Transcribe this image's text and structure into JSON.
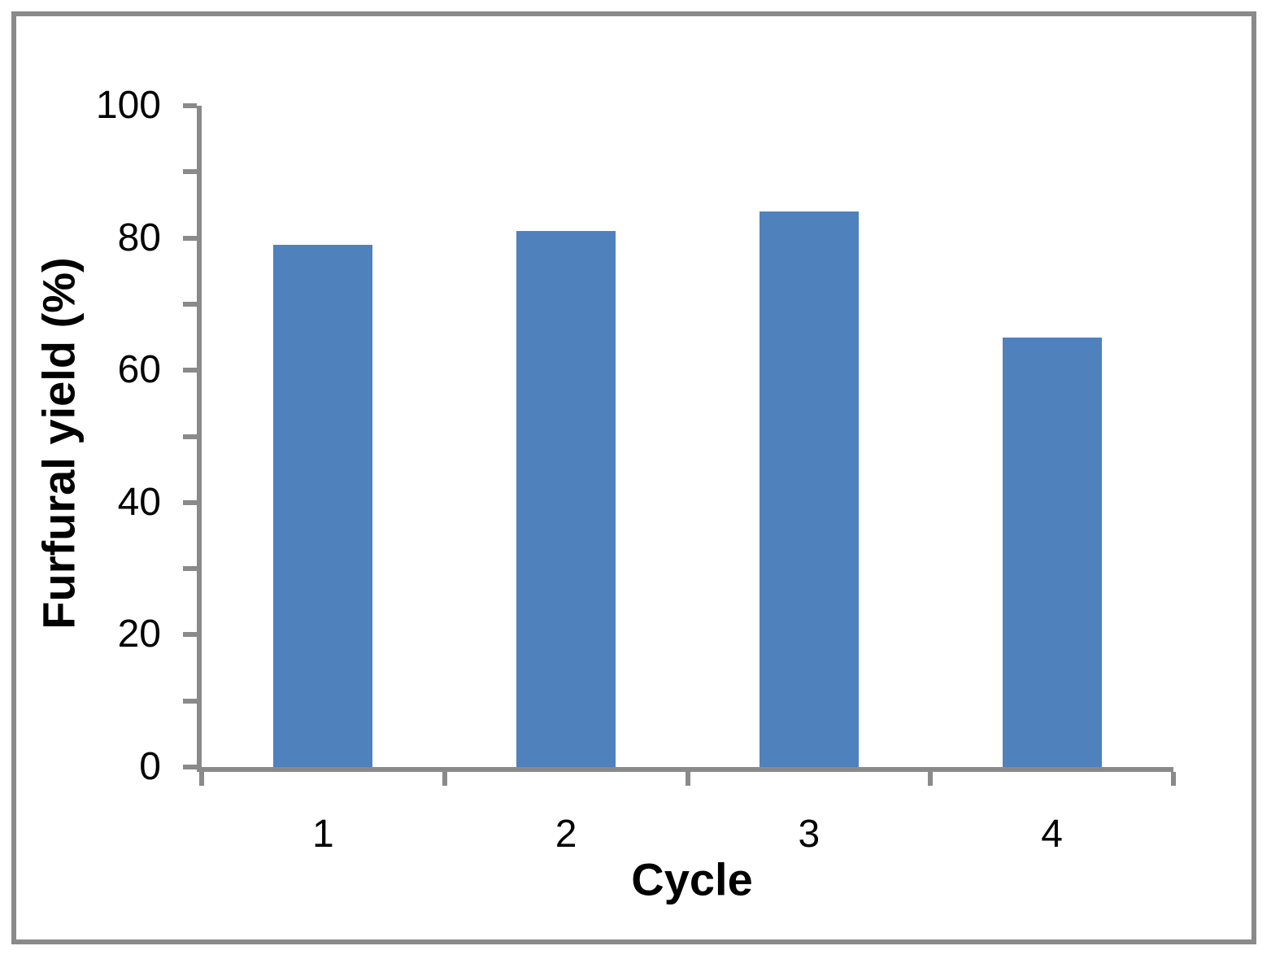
{
  "chart_data": {
    "type": "bar",
    "title": "",
    "categories": [
      "1",
      "2",
      "3",
      "4"
    ],
    "values": [
      79,
      81,
      84,
      65
    ],
    "xlabel": "Cycle",
    "ylabel": "Furfural yield (%)",
    "ylim": [
      0,
      100
    ],
    "y_major_tick_step": 20,
    "y_minor_tick_step": 10,
    "y_tick_labels": [
      "0",
      "20",
      "40",
      "60",
      "80",
      "100"
    ],
    "bar_color": "#4F81BD",
    "axis_color": "#8A8A8A",
    "frame_color": "#8A8A8A",
    "background_color": "#FFFFFF",
    "grid": false,
    "legend": false,
    "legend_position": "none",
    "bar_width_fraction_of_category": 0.41
  }
}
